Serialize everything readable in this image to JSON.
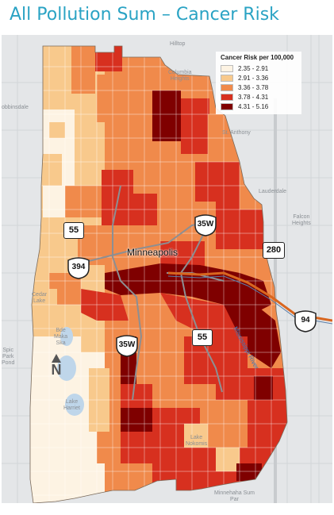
{
  "title": "All Pollution Sum – Cancer Risk",
  "legend": {
    "title": "Cancer Risk per 100,000",
    "items": [
      {
        "label": "2.35 - 2.91",
        "color": "#fdf3e3"
      },
      {
        "label": "2.91 - 3.36",
        "color": "#f8c98c"
      },
      {
        "label": "3.36 - 3.78",
        "color": "#f08a4b"
      },
      {
        "label": "3.78 - 4.31",
        "color": "#d7301f"
      },
      {
        "label": "4.31 - 5.16",
        "color": "#7f0000"
      }
    ]
  },
  "city_label": "Minneapolis",
  "places": {
    "hilltop": "Hilltop",
    "columbia_heights": "Columbia\nHeights",
    "st_anthony": "St. Anthony",
    "lauderdale": "Lauderdale",
    "falcon_heights": "Falcon\nHeights",
    "robbinsdale": "obbinsdale",
    "cedar_lake": "Cedar\nLake",
    "bde_maka_ska": "Bde\nMaka\nSka",
    "lake_harriet": "Lake\nHarriet",
    "lake_nokomis": "Lake\nNokomis",
    "minnehaha_park": "Minnehaha Sum\nPar",
    "river": "Mississippi River",
    "left_edge": "Spic\nPark\nPond"
  },
  "highways": {
    "us55_north": "55",
    "us55_south": "55",
    "i394": "394",
    "i35w_north": "35W",
    "i35w_south": "35W",
    "mn280": "280",
    "i94": "94"
  },
  "north_label": "N",
  "colors": {
    "title": "#2aa3c4",
    "class1": "#fdf3e3",
    "class2": "#f8c98c",
    "class3": "#f08a4b",
    "class4": "#d7301f",
    "class5": "#7f0000",
    "water": "#bfd6ea",
    "i94_route": "#d9661f"
  }
}
